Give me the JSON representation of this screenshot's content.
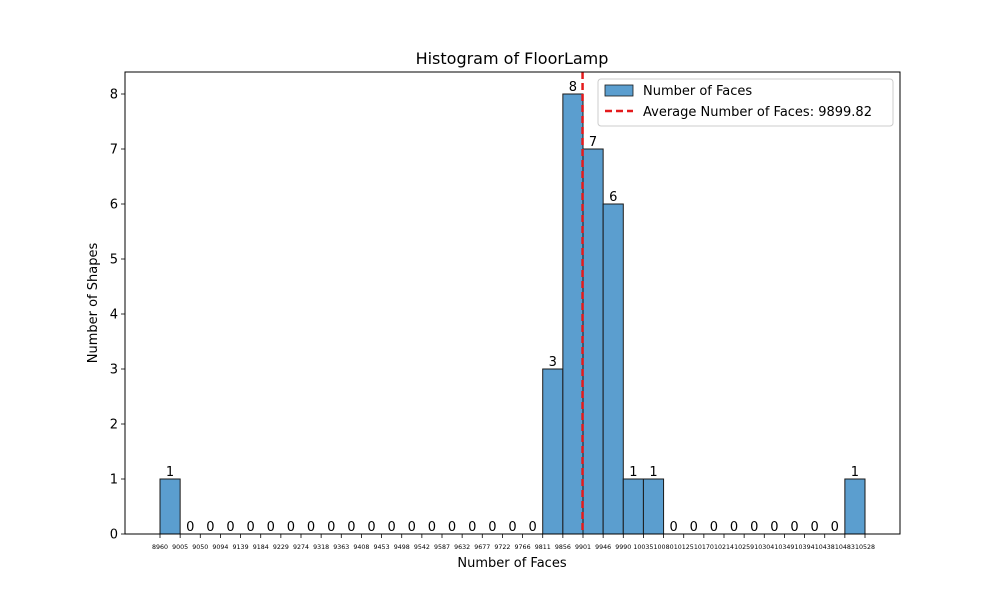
{
  "chart_data": {
    "type": "bar",
    "title": "Histogram of FloorLamp",
    "xlabel": "Number of Faces",
    "ylabel": "Number of Shapes",
    "ylim": [
      0,
      8.4
    ],
    "yticks": [
      0,
      1,
      2,
      3,
      4,
      5,
      6,
      7,
      8
    ],
    "bin_edges": [
      8960,
      9005,
      9050,
      9094,
      9139,
      9184,
      9229,
      9274,
      9318,
      9363,
      9408,
      9453,
      9498,
      9542,
      9587,
      9632,
      9677,
      9722,
      9766,
      9811,
      9856,
      9901,
      9946,
      9990,
      10035,
      10080,
      10125,
      10170,
      10214,
      10259,
      10304,
      10349,
      10394,
      10438,
      10483,
      10528
    ],
    "xtick_labels": [
      "8960",
      "9005",
      "9050",
      "9094",
      "9139",
      "9184",
      "9229",
      "9274",
      "9318",
      "9363",
      "9408",
      "9453",
      "9498",
      "9542",
      "9587",
      "9632",
      "9677",
      "9722",
      "9766",
      "9811",
      "9856",
      "9901",
      "9946",
      "9990",
      "10035",
      "10080",
      "10125",
      "10170",
      "10214",
      "10259",
      "10304",
      "10349",
      "10394",
      "10438",
      "10483",
      "10528"
    ],
    "values": [
      1,
      0,
      0,
      0,
      0,
      0,
      0,
      0,
      0,
      0,
      0,
      0,
      0,
      0,
      0,
      0,
      0,
      0,
      0,
      3,
      8,
      7,
      6,
      1,
      1,
      0,
      0,
      0,
      0,
      0,
      0,
      0,
      0,
      0,
      1
    ],
    "average": 9899.82,
    "series": [
      {
        "name": "Number of Faces",
        "color": "#5b9ecf"
      }
    ],
    "reference_lines": [
      {
        "name": "Average Number of Faces: 9899.82",
        "value": 9899.82,
        "color": "#e41a1c",
        "style": "dashed"
      }
    ],
    "legend": {
      "placement": "top-right"
    },
    "grid": false
  }
}
